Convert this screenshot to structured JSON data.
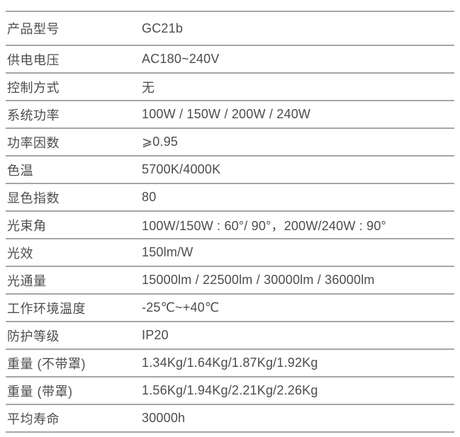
{
  "table": {
    "border_color": "#a6a6a6",
    "text_color": "#4d4d4d",
    "rows": [
      {
        "label": "产品型号",
        "value": "GC21b"
      },
      {
        "label": "供电电压",
        "value": "AC180~240V"
      },
      {
        "label": "控制方式",
        "value": "无"
      },
      {
        "label": "系统功率",
        "value": "100W / 150W / 200W / 240W"
      },
      {
        "label": "功率因数",
        "value": "⩾0.95"
      },
      {
        "label": "色温",
        "value": "5700K/4000K"
      },
      {
        "label": "显色指数",
        "value": "80"
      },
      {
        "label": "光束角",
        "value": "100W/150W : 60°/ 90°，200W/240W : 90°"
      },
      {
        "label": "光效",
        "value": "150lm/W"
      },
      {
        "label": "光通量",
        "value": "15000lm / 22500lm / 30000lm / 36000lm"
      },
      {
        "label": "工作环境温度",
        "value": "-25℃~+40℃"
      },
      {
        "label": "防护等级",
        "value": "IP20"
      },
      {
        "label": "重量 (不带罩)",
        "value": "1.34Kg/1.64Kg/1.87Kg/1.92Kg"
      },
      {
        "label": "重量 (带罩)",
        "value": "1.56Kg/1.94Kg/2.21Kg/2.26Kg"
      },
      {
        "label": "平均寿命",
        "value": "30000h"
      }
    ]
  }
}
